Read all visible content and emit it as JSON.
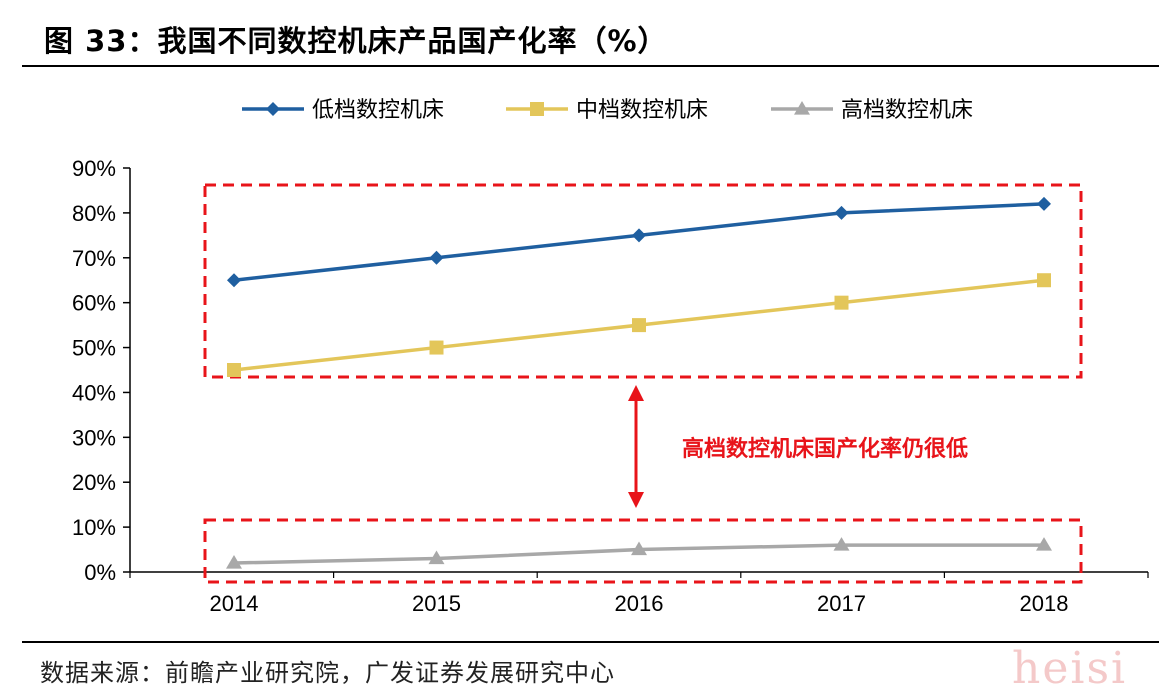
{
  "figure": {
    "title": "图 33：我国不同数控机床产品国产化率（%）",
    "source": "数据来源：前瞻产业研究院，广发证券发展研究中心",
    "watermark": "heisi"
  },
  "chart_data": {
    "type": "line",
    "title": "我国不同数控机床产品国产化率（%）",
    "categories": [
      "2014",
      "2015",
      "2016",
      "2017",
      "2018"
    ],
    "series": [
      {
        "name": "低档数控机床",
        "values": [
          65,
          70,
          75,
          80,
          82
        ],
        "color": "#1f5fa0",
        "marker": "diamond"
      },
      {
        "name": "中档数控机床",
        "values": [
          45,
          50,
          55,
          60,
          65
        ],
        "color": "#e3c65a",
        "marker": "square"
      },
      {
        "name": "高档数控机床",
        "values": [
          2,
          3,
          5,
          6,
          6
        ],
        "color": "#a8a8a8",
        "marker": "triangle"
      }
    ],
    "ylim": [
      0,
      90
    ],
    "yticks": [
      "0%",
      "10%",
      "20%",
      "30%",
      "40%",
      "50%",
      "60%",
      "70%",
      "80%",
      "90%"
    ],
    "xlabel": "",
    "ylabel": "",
    "legend": "top",
    "grid": false,
    "annotation": {
      "text": "高档数控机床国产化率仍很低",
      "color": "#e8141a"
    }
  }
}
